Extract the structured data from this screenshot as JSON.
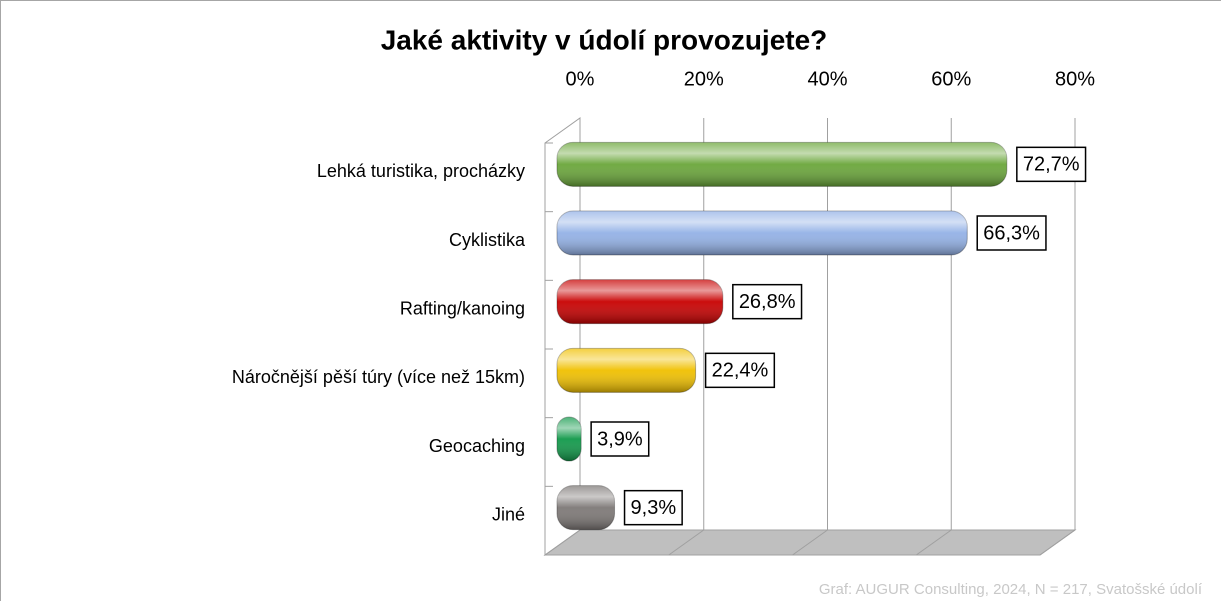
{
  "chart_data": {
    "type": "bar",
    "orientation": "horizontal",
    "title": "Jaké aktivity v údolí provozujete?",
    "categories": [
      "Lehká turistika, procházky",
      "Cyklistika",
      "Rafting/kanoing",
      "Náročnější pěší túry (více než 15km)",
      "Geocaching",
      "Jiné"
    ],
    "values": [
      72.7,
      66.3,
      26.8,
      22.4,
      3.9,
      9.3
    ],
    "value_labels": [
      "72,7%",
      "66,3%",
      "26,8%",
      "22,4%",
      "3,9%",
      "9,3%"
    ],
    "colors": [
      "#6aa63a",
      "#93b1e6",
      "#c80000",
      "#f0c000",
      "#11994a",
      "#7d7876"
    ],
    "xlim": [
      0,
      80
    ],
    "xticks": [
      {
        "value": 0,
        "label": "0%"
      },
      {
        "value": 20,
        "label": "20%"
      },
      {
        "value": 40,
        "label": "40%"
      },
      {
        "value": 60,
        "label": "60%"
      },
      {
        "value": 80,
        "label": "80%"
      }
    ],
    "grid": true,
    "note": "Graf: AUGUR Consulting, 2024, N = 217, Svatošské údolí"
  }
}
